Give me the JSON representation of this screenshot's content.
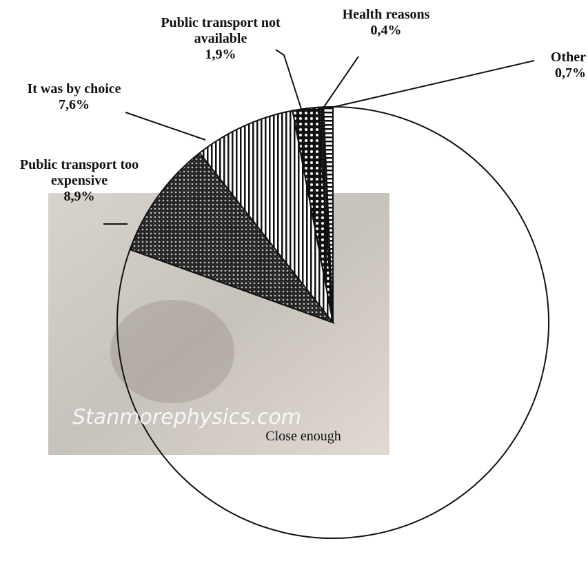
{
  "chart_data": {
    "type": "pie",
    "categories": [
      "Close enough",
      "Public transport too expensive",
      "It was by choice",
      "Public transport not available",
      "Health reasons",
      "Other"
    ],
    "values": [
      80.5,
      8.9,
      7.6,
      1.9,
      0.4,
      0.7
    ],
    "value_labels": [
      null,
      "8,9%",
      "7,6%",
      "1,9%",
      "0,4%",
      "0,7%"
    ],
    "watermark": "Stanmorephysics.com"
  }
}
